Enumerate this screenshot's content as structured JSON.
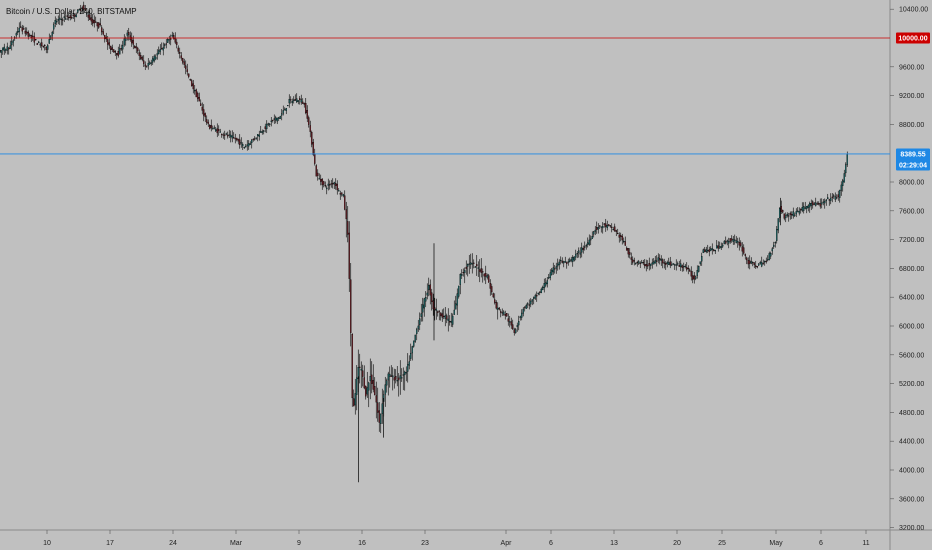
{
  "title": "Bitcoin / U.S. Dollar, 240, BITSTAMP",
  "chart_data": {
    "type": "candlestick",
    "title": "Bitcoin / U.S. Dollar, 240, BITSTAMP",
    "xlabel": "",
    "ylabel": "",
    "ylim": [
      3200,
      10600
    ],
    "y_ticks": [
      "10400.00",
      "9600.00",
      "9200.00",
      "8800.00",
      "8000.00",
      "7600.00",
      "7200.00",
      "6800.00",
      "6400.00",
      "6000.00",
      "5600.00",
      "5200.00",
      "4800.00",
      "4400.00",
      "4000.00",
      "3600.00",
      "3200.00"
    ],
    "y_tick_values": [
      10400,
      9600,
      9200,
      8800,
      8000,
      7600,
      7200,
      6800,
      6400,
      6000,
      5600,
      5200,
      4800,
      4400,
      4000,
      3600,
      3200
    ],
    "x_ticks": [
      "10",
      "17",
      "24",
      "Mar",
      "9",
      "16",
      "23",
      "Apr",
      "6",
      "13",
      "20",
      "25",
      "May",
      "6",
      "11"
    ],
    "x_tick_days": [
      10,
      17,
      24,
      31,
      38,
      45,
      52,
      61,
      66,
      73,
      80,
      85,
      91,
      96,
      101
    ],
    "grid": false,
    "horizontal_lines": [
      {
        "label": "10000.00",
        "value": 10000,
        "color": "#cc0000"
      },
      {
        "label": "8389.55",
        "value": 8389.55,
        "color": "#1e88e5"
      }
    ],
    "countdown_label": "02:29:04",
    "up_color": "#1b6b6b",
    "down_color": "#6e1b24",
    "wick_color": "#000000",
    "price_path": [
      [
        0,
        9100
      ],
      [
        0.6,
        9200
      ],
      [
        1,
        9500
      ],
      [
        2,
        9650
      ],
      [
        3,
        9780
      ],
      [
        4,
        9760
      ],
      [
        5,
        9830
      ],
      [
        6,
        9880
      ],
      [
        7,
        10150
      ],
      [
        8,
        10050
      ],
      [
        9,
        9930
      ],
      [
        10,
        9860
      ],
      [
        11,
        10230
      ],
      [
        12,
        10280
      ],
      [
        13,
        10300
      ],
      [
        14,
        10430
      ],
      [
        15,
        10240
      ],
      [
        16,
        10160
      ],
      [
        17,
        9870
      ],
      [
        18,
        9780
      ],
      [
        19,
        10060
      ],
      [
        20,
        9840
      ],
      [
        21,
        9600
      ],
      [
        22,
        9730
      ],
      [
        23,
        9880
      ],
      [
        24,
        10030
      ],
      [
        25,
        9730
      ],
      [
        26,
        9400
      ],
      [
        27,
        9110
      ],
      [
        28,
        8780
      ],
      [
        29,
        8710
      ],
      [
        30,
        8650
      ],
      [
        31,
        8600
      ],
      [
        32,
        8490
      ],
      [
        33,
        8590
      ],
      [
        34,
        8720
      ],
      [
        35,
        8840
      ],
      [
        36,
        8910
      ],
      [
        37,
        9120
      ],
      [
        38,
        9150
      ],
      [
        38.6,
        9100
      ],
      [
        39,
        8910
      ],
      [
        39.5,
        8550
      ],
      [
        40,
        8100
      ],
      [
        41,
        7930
      ],
      [
        42,
        8000
      ],
      [
        42.5,
        7870
      ],
      [
        43,
        7800
      ],
      [
        43.5,
        7300
      ],
      [
        43.8,
        6100
      ],
      [
        44,
        5000
      ],
      [
        44.2,
        4850
      ],
      [
        44.6,
        5420
      ],
      [
        45,
        5400
      ],
      [
        45.5,
        5050
      ],
      [
        46,
        5300
      ],
      [
        46.6,
        5000
      ],
      [
        47,
        4650
      ],
      [
        47.6,
        5150
      ],
      [
        48,
        5320
      ],
      [
        49,
        5250
      ],
      [
        50,
        5350
      ],
      [
        51,
        5870
      ],
      [
        52,
        6350
      ],
      [
        52.5,
        6550
      ],
      [
        53,
        6250
      ],
      [
        54,
        6150
      ],
      [
        55,
        6050
      ],
      [
        55.5,
        6300
      ],
      [
        56,
        6700
      ],
      [
        57,
        6880
      ],
      [
        58,
        6800
      ],
      [
        59,
        6680
      ],
      [
        60,
        6250
      ],
      [
        61,
        6160
      ],
      [
        62,
        5920
      ],
      [
        63,
        6250
      ],
      [
        64,
        6350
      ],
      [
        65,
        6500
      ],
      [
        66,
        6720
      ],
      [
        67,
        6900
      ],
      [
        68,
        6870
      ],
      [
        69,
        7000
      ],
      [
        70,
        7120
      ],
      [
        71,
        7350
      ],
      [
        72,
        7400
      ],
      [
        73,
        7350
      ],
      [
        74,
        7200
      ],
      [
        75,
        6920
      ],
      [
        76,
        6870
      ],
      [
        77,
        6840
      ],
      [
        78,
        6930
      ],
      [
        79,
        6870
      ],
      [
        80,
        6850
      ],
      [
        81,
        6830
      ],
      [
        82,
        6640
      ],
      [
        83,
        7060
      ],
      [
        84,
        7050
      ],
      [
        85,
        7130
      ],
      [
        86,
        7200
      ],
      [
        87,
        7150
      ],
      [
        88,
        6880
      ],
      [
        89,
        6840
      ],
      [
        90,
        6900
      ],
      [
        91,
        7180
      ],
      [
        91.5,
        7650
      ],
      [
        92,
        7520
      ],
      [
        93,
        7560
      ],
      [
        94,
        7630
      ],
      [
        95,
        7700
      ],
      [
        96,
        7680
      ],
      [
        97,
        7770
      ],
      [
        98,
        7800
      ],
      [
        98.5,
        8000
      ],
      [
        99,
        8389.55
      ]
    ]
  }
}
